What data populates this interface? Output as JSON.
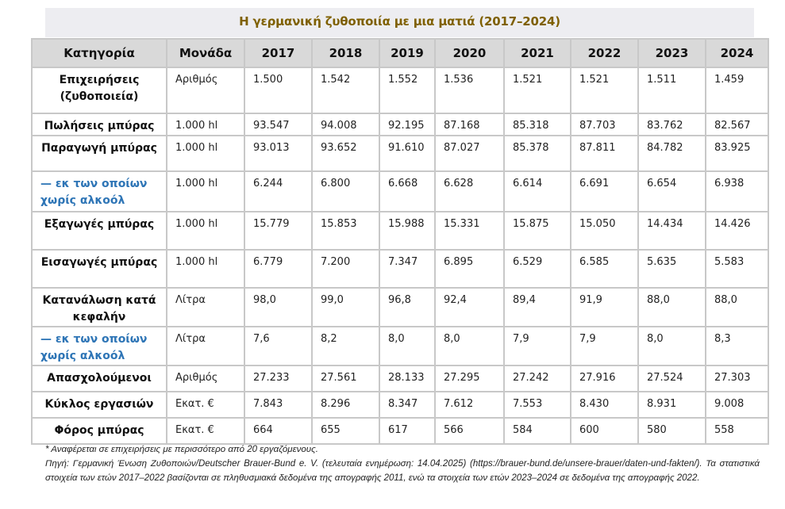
{
  "title": "Η γερμανική ζυθοποιία με μια ματιά (2017–2024)",
  "table": {
    "headers": [
      "Κατηγορία",
      "Μονάδα",
      "2017",
      "2018",
      "2019",
      "2020",
      "2021",
      "2022",
      "2023",
      "2024"
    ],
    "rows": [
      {
        "category": "Επιχειρήσεις (ζυθοποιεία)",
        "unit": "Αριθμός",
        "values": [
          "1.500",
          "1.542",
          "1.552",
          "1.536",
          "1.521",
          "1.521",
          "1.511",
          "1.459"
        ]
      },
      {
        "category": "Πωλήσεις μπύρας",
        "unit": "1.000 hl",
        "values": [
          "93.547",
          "94.008",
          "92.195",
          "87.168",
          "85.318",
          "87.703",
          "83.762",
          "82.567"
        ]
      },
      {
        "category": "Παραγωγή μπύρας",
        "unit": "1.000 hl",
        "values": [
          "93.013",
          "93.652",
          "91.610",
          "87.027",
          "85.378",
          "87.811",
          "84.782",
          "83.925"
        ]
      },
      {
        "category": "— εκ των οποίων χωρίς αλκοόλ",
        "unit": "1.000 hl",
        "values": [
          "6.244",
          "6.800",
          "6.668",
          "6.628",
          "6.614",
          "6.691",
          "6.654",
          "6.938"
        ]
      },
      {
        "category": "Εξαγωγές μπύρας",
        "unit": "1.000 hl",
        "values": [
          "15.779",
          "15.853",
          "15.988",
          "15.331",
          "15.875",
          "15.050",
          "14.434",
          "14.426"
        ]
      },
      {
        "category": "Εισαγωγές μπύρας",
        "unit": "1.000 hl",
        "values": [
          "6.779",
          "7.200",
          "7.347",
          "6.895",
          "6.529",
          "6.585",
          "5.635",
          "5.583"
        ]
      },
      {
        "category": "Κατανάλωση κατά κεφαλήν",
        "unit": "Λίτρα",
        "values": [
          "98,0",
          "99,0",
          "96,8",
          "92,4",
          "89,4",
          "91,9",
          "88,0",
          "88,0"
        ]
      },
      {
        "category": "— εκ των οποίων χωρίς αλκοόλ",
        "unit": "Λίτρα",
        "values": [
          "7,6",
          "8,2",
          "8,0",
          "8,0",
          "7,9",
          "7,9",
          "8,0",
          "8,3"
        ]
      },
      {
        "category": "Απασχολούμενοι",
        "unit": "Αριθμός",
        "values": [
          "27.233",
          "27.561",
          "28.133",
          "27.295",
          "27.242",
          "27.916",
          "27.524",
          "27.303"
        ]
      },
      {
        "category": "Κύκλος εργασιών",
        "unit": "Εκατ. €",
        "values": [
          "7.843",
          "8.296",
          "8.347",
          "7.612",
          "7.553",
          "8.430",
          "8.931",
          "9.008"
        ]
      },
      {
        "category": "Φόρος μπύρας",
        "unit": "Εκατ. €",
        "values": [
          "664",
          "655",
          "617",
          "566",
          "584",
          "600",
          "580",
          "558"
        ]
      }
    ]
  },
  "footnote": {
    "note": "* Αναφέρεται σε επιχειρήσεις με περισσότερο από 20 εργαζόμενους.",
    "source": "Πηγή: Γερμανική Ένωση Ζυθοποιών/Deutscher Brauer-Bund e. V. (τελευταία ενημέρωση: 14.04.2025) (https://brauer-bund.de/unsere-brauer/daten-und-fakten/). Τα στατιστικά στοιχεία των ετών 2017–2022 βασίζονται σε πληθυσμιακά δεδομένα της απογραφής 2011, ενώ τα στοιχεία των ετών 2023–2024 σε δεδομένα της απογραφής 2022."
  },
  "colors": {
    "title": "#7F6000",
    "title_bg": "#EDEDF1",
    "header_bg": "#D9D9D9",
    "subrow_text": "#2E75B6",
    "border": "#C8C8C8"
  }
}
